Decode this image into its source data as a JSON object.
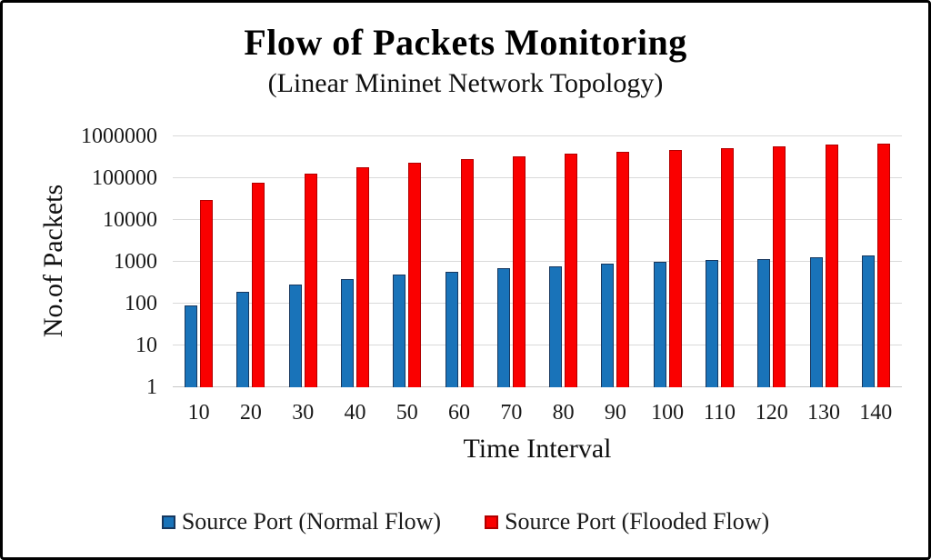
{
  "chart_data": {
    "type": "bar",
    "title": "Flow of Packets Monitoring",
    "subtitle": "(Linear Mininet Network Topology)",
    "xlabel": "Time Interval",
    "ylabel": "No.of Packets",
    "y_scale": "log10",
    "ylim": [
      1,
      1000000
    ],
    "y_ticks": [
      1,
      10,
      100,
      1000,
      10000,
      100000,
      1000000
    ],
    "grid": true,
    "legend_position": "bottom",
    "x": [
      10,
      20,
      30,
      40,
      50,
      60,
      70,
      80,
      90,
      100,
      110,
      120,
      130,
      140
    ],
    "series": [
      {
        "key": "normal",
        "name": "Source Port (Normal Flow)",
        "color": "#1973B9",
        "border_color": "#17375E",
        "values": [
          90,
          190,
          290,
          390,
          490,
          590,
          690,
          790,
          890,
          990,
          1090,
          1190,
          1290,
          1390
        ]
      },
      {
        "key": "flooded",
        "name": "Source Port (Flooded Flow)",
        "color": "#FA0000",
        "border_color": "#B10000",
        "values": [
          30000,
          80000,
          130000,
          180000,
          230000,
          280000,
          330000,
          380000,
          430000,
          480000,
          530000,
          580000,
          630000,
          680000
        ]
      }
    ]
  },
  "frame": {
    "background": "#FFFFFF",
    "border_color": "#000000",
    "gridline_color": "#D9D9D9"
  }
}
